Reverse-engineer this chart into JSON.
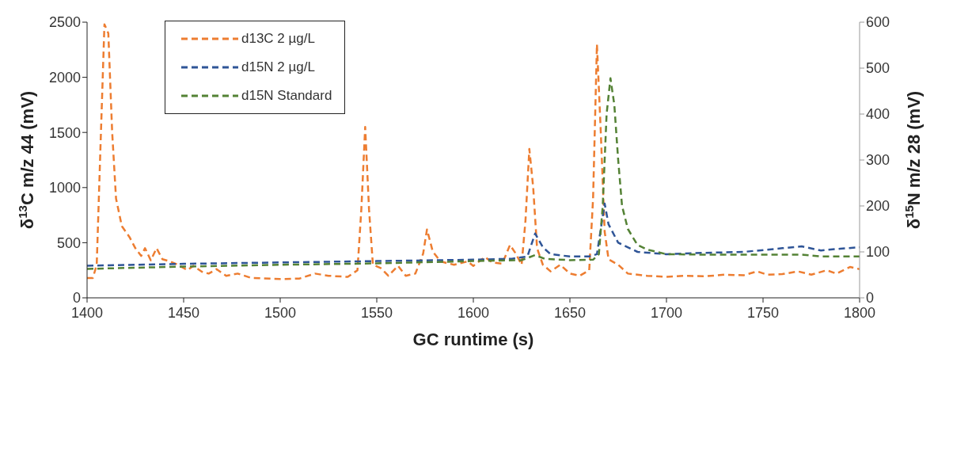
{
  "chart_data": {
    "type": "line",
    "xlabel": "GC runtime (s)",
    "ylabel": "δ$^{13}$C m/z 44 (mV)",
    "y2label": "δ$^{15}$N m/z 28 (mV)",
    "xlim": [
      1400,
      1800
    ],
    "xticks": [
      1400,
      1450,
      1500,
      1550,
      1600,
      1650,
      1700,
      1750,
      1800
    ],
    "ylim": [
      0,
      2500
    ],
    "yticks": [
      0,
      500,
      1000,
      1500,
      2000,
      2500
    ],
    "y2lim": [
      0,
      600
    ],
    "y2ticks": [
      0,
      100,
      200,
      300,
      400,
      500,
      600
    ],
    "legend": "top left",
    "line_style": "dashed",
    "marker": "none",
    "series": [
      {
        "name": "d13C 2 µg/L",
        "color": "#ed7d31",
        "x": [
          1400,
          1403,
          1405,
          1407,
          1409,
          1411,
          1413,
          1415,
          1418,
          1422,
          1425,
          1428,
          1430,
          1433,
          1436,
          1439,
          1443,
          1447,
          1452,
          1455,
          1460,
          1463,
          1467,
          1472,
          1478,
          1485,
          1500,
          1510,
          1518,
          1525,
          1535,
          1540,
          1542,
          1544,
          1546,
          1548,
          1552,
          1556,
          1561,
          1565,
          1570,
          1574,
          1576,
          1579,
          1583,
          1590,
          1597,
          1600,
          1606,
          1610,
          1615,
          1619,
          1622,
          1625,
          1627,
          1629,
          1631,
          1633,
          1636,
          1640,
          1645,
          1650,
          1655,
          1660,
          1662,
          1664,
          1666,
          1668,
          1670,
          1675,
          1680,
          1690,
          1700,
          1710,
          1720,
          1730,
          1740,
          1747,
          1752,
          1760,
          1768,
          1775,
          1783,
          1788,
          1795,
          1800
        ],
        "values": [
          180,
          180,
          300,
          1400,
          2480,
          2400,
          1500,
          900,
          650,
          550,
          450,
          380,
          450,
          340,
          450,
          350,
          330,
          300,
          250,
          290,
          230,
          220,
          260,
          200,
          220,
          180,
          170,
          175,
          220,
          200,
          190,
          250,
          800,
          1550,
          800,
          300,
          270,
          200,
          290,
          200,
          220,
          400,
          620,
          420,
          330,
          300,
          330,
          290,
          370,
          320,
          310,
          480,
          400,
          300,
          700,
          1350,
          1000,
          450,
          300,
          240,
          300,
          220,
          200,
          250,
          900,
          2300,
          1500,
          600,
          350,
          300,
          220,
          200,
          190,
          200,
          195,
          210,
          205,
          240,
          210,
          215,
          240,
          210,
          250,
          220,
          280,
          260
        ]
      },
      {
        "name": "d15N 2 µg/L",
        "color": "#2f5597",
        "axis": "y2",
        "x": [
          1400,
          1450,
          1500,
          1550,
          1600,
          1620,
          1628,
          1632,
          1636,
          1640,
          1650,
          1660,
          1664,
          1666,
          1668,
          1670,
          1675,
          1685,
          1700,
          1720,
          1740,
          1760,
          1770,
          1780,
          1790,
          1800
        ],
        "values": [
          70,
          74,
          77,
          80,
          83,
          85,
          90,
          140,
          110,
          95,
          90,
          90,
          95,
          150,
          205,
          160,
          120,
          100,
          95,
          98,
          100,
          108,
          112,
          103,
          107,
          110
        ]
      },
      {
        "name": "d15N Standard",
        "color": "#548235",
        "axis": "y2",
        "x": [
          1400,
          1450,
          1500,
          1550,
          1600,
          1625,
          1632,
          1637,
          1650,
          1662,
          1665,
          1667,
          1669,
          1671,
          1673,
          1675,
          1677,
          1680,
          1685,
          1690,
          1700,
          1720,
          1750,
          1770,
          1780,
          1800
        ],
        "values": [
          63,
          68,
          72,
          75,
          80,
          82,
          93,
          85,
          82,
          83,
          95,
          200,
          400,
          478,
          420,
          300,
          200,
          150,
          115,
          105,
          95,
          94,
          94,
          94,
          90,
          90
        ]
      }
    ]
  }
}
